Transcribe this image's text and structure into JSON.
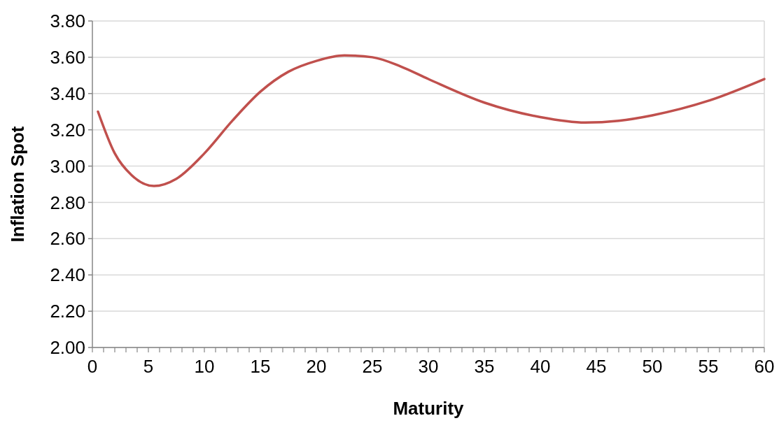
{
  "chart_data": {
    "type": "line",
    "xlabel": "Maturity",
    "ylabel": "Inflation Spot",
    "x": [
      0.5,
      2,
      3.5,
      5.5,
      7.5,
      10,
      12.5,
      15,
      17.5,
      20,
      22.5,
      25,
      27.5,
      30,
      35,
      40,
      44,
      47,
      50,
      55,
      60
    ],
    "series": [
      {
        "color": "#c0504d",
        "values": [
          3.3,
          3.07,
          2.95,
          2.89,
          2.93,
          3.07,
          3.25,
          3.41,
          3.52,
          3.58,
          3.61,
          3.6,
          3.55,
          3.48,
          3.35,
          3.27,
          3.24,
          3.25,
          3.28,
          3.36,
          3.48
        ]
      }
    ],
    "xlim": [
      0,
      60
    ],
    "xticks": [
      0,
      {
        "value": 1,
        "label": null
      },
      {
        "value": 2,
        "label": null
      },
      {
        "value": 3,
        "label": null
      },
      {
        "value": 4,
        "label": null
      },
      5,
      {
        "value": 6,
        "label": null
      },
      {
        "value": 7,
        "label": null
      },
      {
        "value": 8,
        "label": null
      },
      {
        "value": 9,
        "label": null
      },
      10,
      {
        "value": 11,
        "label": null
      },
      {
        "value": 12,
        "label": null
      },
      {
        "value": 13,
        "label": null
      },
      {
        "value": 14,
        "label": null
      },
      15,
      {
        "value": 16,
        "label": null
      },
      {
        "value": 17,
        "label": null
      },
      {
        "value": 18,
        "label": null
      },
      {
        "value": 19,
        "label": null
      },
      20,
      {
        "value": 21,
        "label": null
      },
      {
        "value": 22,
        "label": null
      },
      {
        "value": 23,
        "label": null
      },
      {
        "value": 24,
        "label": null
      },
      25,
      {
        "value": 26,
        "label": null
      },
      {
        "value": 27,
        "label": null
      },
      {
        "value": 28,
        "label": null
      },
      {
        "value": 29,
        "label": null
      },
      30,
      {
        "value": 31,
        "label": null
      },
      {
        "value": 32,
        "label": null
      },
      {
        "value": 33,
        "label": null
      },
      {
        "value": 34,
        "label": null
      },
      35,
      {
        "value": 36,
        "label": null
      },
      {
        "value": 37,
        "label": null
      },
      {
        "value": 38,
        "label": null
      },
      {
        "value": 39,
        "label": null
      },
      40,
      {
        "value": 41,
        "label": null
      },
      {
        "value": 42,
        "label": null
      },
      {
        "value": 43,
        "label": null
      },
      {
        "value": 44,
        "label": null
      },
      45,
      {
        "value": 46,
        "label": null
      },
      {
        "value": 47,
        "label": null
      },
      {
        "value": 48,
        "label": null
      },
      {
        "value": 49,
        "label": null
      },
      50,
      {
        "value": 51,
        "label": null
      },
      {
        "value": 52,
        "label": null
      },
      {
        "value": 53,
        "label": null
      },
      {
        "value": 54,
        "label": null
      },
      55,
      {
        "value": 56,
        "label": null
      },
      {
        "value": 57,
        "label": null
      },
      {
        "value": 58,
        "label": null
      },
      {
        "value": 59,
        "label": null
      },
      60
    ],
    "ylim": [
      2.0,
      3.8
    ],
    "yticks": [
      {
        "value": 2.0,
        "label": "2.00"
      },
      {
        "value": 2.2,
        "label": "2.20"
      },
      {
        "value": 2.4,
        "label": "2.40"
      },
      {
        "value": 2.6,
        "label": "2.60"
      },
      {
        "value": 2.8,
        "label": "2.80"
      },
      {
        "value": 3.0,
        "label": "3.00"
      },
      {
        "value": 3.2,
        "label": "3.20"
      },
      {
        "value": 3.4,
        "label": "3.40"
      },
      {
        "value": 3.6,
        "label": "3.60"
      },
      {
        "value": 3.8,
        "label": "3.80"
      }
    ],
    "grid": "y",
    "marker": "none",
    "line_style": "solid"
  }
}
